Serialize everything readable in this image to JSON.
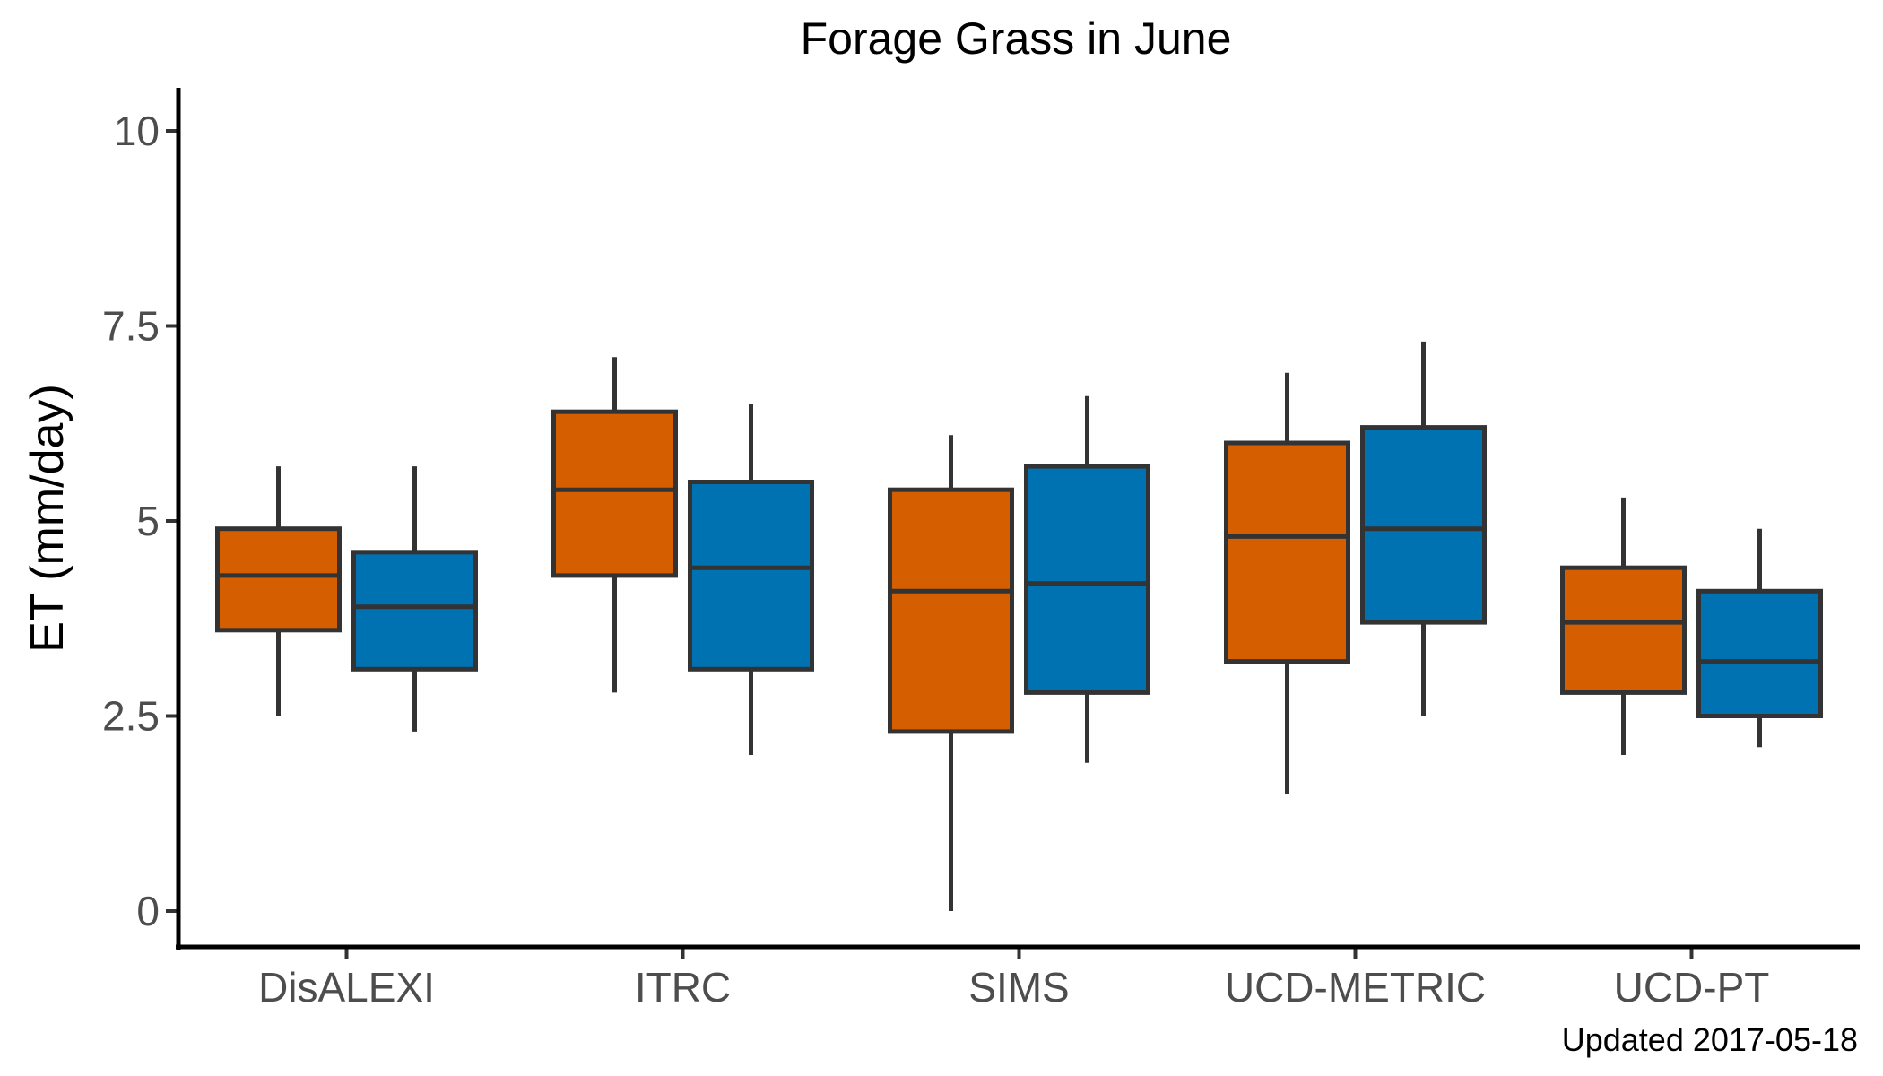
{
  "chart_data": {
    "type": "box",
    "title": "Forage Grass in June",
    "xlabel": "",
    "ylabel": "ET (mm/day)",
    "ylim": [
      -0.5,
      10.5
    ],
    "yticks": [
      0,
      2.5,
      5,
      7.5,
      10
    ],
    "ytick_labels": [
      "0",
      "2.5",
      "5",
      "7.5",
      "10"
    ],
    "categories": [
      "DisALEXI",
      "ITRC",
      "SIMS",
      "UCD-METRIC",
      "UCD-PT"
    ],
    "grid": false,
    "legend": "none",
    "series": [
      {
        "color": "#D55E00",
        "boxes": [
          {
            "min": 2.5,
            "q1": 3.6,
            "median": 4.3,
            "q3": 4.9,
            "max": 5.7
          },
          {
            "min": 2.8,
            "q1": 4.3,
            "median": 5.4,
            "q3": 6.4,
            "max": 7.1
          },
          {
            "min": 0.0,
            "q1": 2.3,
            "median": 4.1,
            "q3": 5.4,
            "max": 6.1
          },
          {
            "min": 1.5,
            "q1": 3.2,
            "median": 4.8,
            "q3": 6.0,
            "max": 6.9
          },
          {
            "min": 2.0,
            "q1": 2.8,
            "median": 3.7,
            "q3": 4.4,
            "max": 5.3
          }
        ]
      },
      {
        "color": "#0072B2",
        "boxes": [
          {
            "min": 2.3,
            "q1": 3.1,
            "median": 3.9,
            "q3": 4.6,
            "max": 5.7
          },
          {
            "min": 2.0,
            "q1": 3.1,
            "median": 4.4,
            "q3": 5.5,
            "max": 6.5
          },
          {
            "min": 1.9,
            "q1": 2.8,
            "median": 4.2,
            "q3": 5.7,
            "max": 6.6
          },
          {
            "min": 2.5,
            "q1": 3.7,
            "median": 4.9,
            "q3": 6.2,
            "max": 7.3
          },
          {
            "min": 2.1,
            "q1": 2.5,
            "median": 3.2,
            "q3": 4.1,
            "max": 4.9
          }
        ]
      }
    ],
    "caption": "Updated  2017-05-18"
  }
}
